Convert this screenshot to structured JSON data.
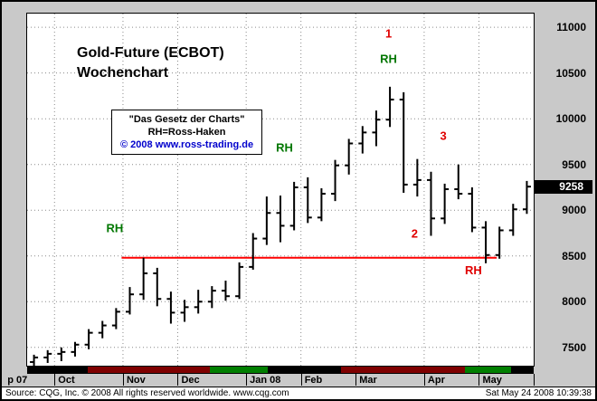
{
  "window": {
    "statusbar": {
      "source": "Source: CQG, Inc. © 2008 All rights reserved worldwide. www.cqg.com",
      "timestamp": "Sat May 24 2008 10:39:38"
    }
  },
  "chart_data": {
    "type": "ohlc-bar",
    "title": "Gold-Future (ECBOT)",
    "subtitle": "Wochenchart",
    "infobox": {
      "line1": "\"Das Gesetz der Charts\"",
      "line2": "RH=Ross-Haken",
      "line3": "© 2008 www.ross-trading.de"
    },
    "ylim": [
      7300,
      11150
    ],
    "yticks": [
      7500,
      8000,
      8500,
      9000,
      9500,
      10000,
      10500,
      11000
    ],
    "last_price": 9258,
    "last_price_label": "9258",
    "grid": "dotted",
    "bar_format": [
      "open",
      "high",
      "low",
      "close"
    ],
    "bars": [
      [
        7340,
        7420,
        7290,
        7390
      ],
      [
        7390,
        7470,
        7330,
        7430
      ],
      [
        7430,
        7500,
        7350,
        7450
      ],
      [
        7450,
        7560,
        7400,
        7530
      ],
      [
        7530,
        7700,
        7480,
        7660
      ],
      [
        7660,
        7790,
        7600,
        7740
      ],
      [
        7740,
        7930,
        7700,
        7890
      ],
      [
        7890,
        8160,
        7860,
        8080
      ],
      [
        8080,
        8480,
        8020,
        8310
      ],
      [
        8310,
        8370,
        7950,
        8030
      ],
      [
        8030,
        8110,
        7760,
        7880
      ],
      [
        7880,
        8020,
        7780,
        7940
      ],
      [
        7940,
        8130,
        7870,
        8000
      ],
      [
        8000,
        8170,
        7930,
        8120
      ],
      [
        8120,
        8230,
        8010,
        8060
      ],
      [
        8060,
        8430,
        8030,
        8380
      ],
      [
        8380,
        8750,
        8350,
        8690
      ],
      [
        8690,
        9150,
        8620,
        8970
      ],
      [
        8970,
        9160,
        8650,
        8830
      ],
      [
        8830,
        9310,
        8780,
        9250
      ],
      [
        9250,
        9360,
        8860,
        8920
      ],
      [
        8920,
        9240,
        8880,
        9180
      ],
      [
        9180,
        9550,
        9100,
        9490
      ],
      [
        9490,
        9780,
        9390,
        9730
      ],
      [
        9730,
        9920,
        9620,
        9850
      ],
      [
        9850,
        10090,
        9700,
        9990
      ],
      [
        9990,
        10350,
        9910,
        10210
      ],
      [
        10210,
        10290,
        9190,
        9280
      ],
      [
        9280,
        9560,
        9150,
        9330
      ],
      [
        9330,
        9420,
        8720,
        8910
      ],
      [
        8910,
        9290,
        8850,
        9230
      ],
      [
        9230,
        9500,
        9120,
        9180
      ],
      [
        9180,
        9250,
        8760,
        8810
      ],
      [
        8810,
        8880,
        8420,
        8510
      ],
      [
        8510,
        8820,
        8470,
        8780
      ],
      [
        8780,
        9070,
        8720,
        9010
      ],
      [
        9010,
        9320,
        8960,
        9258
      ]
    ],
    "month_boundaries": [
      2,
      7,
      11,
      16,
      20,
      24,
      29,
      33
    ],
    "x_labels": [
      {
        "text": "p 07",
        "bar": -1.7
      },
      {
        "text": "Oct",
        "bar": 2
      },
      {
        "text": "Nov",
        "bar": 7
      },
      {
        "text": "Dec",
        "bar": 11
      },
      {
        "text": "Jan 08",
        "bar": 16
      },
      {
        "text": "Feb",
        "bar": 20
      },
      {
        "text": "Mar",
        "bar": 24
      },
      {
        "text": "Apr",
        "bar": 29
      },
      {
        "text": "May",
        "bar": 33
      }
    ],
    "hline": {
      "price": 8480,
      "from_bar": 6.9,
      "to_bar": 34.3,
      "color": "#ff0000",
      "label": "Ross-Hook level"
    },
    "annotations": [
      {
        "text": "RH",
        "bar": 5.9,
        "price": 8760,
        "color": "#007700"
      },
      {
        "text": "RH",
        "bar": 18.3,
        "price": 9640,
        "color": "#007700"
      },
      {
        "text": "1",
        "bar": 25.9,
        "price": 10890,
        "color": "#e00000"
      },
      {
        "text": "RH",
        "bar": 25.9,
        "price": 10610,
        "color": "#007700"
      },
      {
        "text": "2",
        "bar": 27.8,
        "price": 8700,
        "color": "#e00000"
      },
      {
        "text": "3",
        "bar": 29.9,
        "price": 9770,
        "color": "#e00000"
      },
      {
        "text": "RH",
        "bar": 32.1,
        "price": 8300,
        "color": "#e00000"
      }
    ],
    "timebar_segments": [
      {
        "from": 0.0,
        "to": 0.12,
        "color": "#000000"
      },
      {
        "from": 0.12,
        "to": 0.36,
        "color": "#7f0000"
      },
      {
        "from": 0.36,
        "to": 0.475,
        "color": "#007f00"
      },
      {
        "from": 0.475,
        "to": 0.62,
        "color": "#000000"
      },
      {
        "from": 0.62,
        "to": 0.865,
        "color": "#7f0000"
      },
      {
        "from": 0.865,
        "to": 0.955,
        "color": "#007f00"
      },
      {
        "from": 0.955,
        "to": 1.0,
        "color": "#000000"
      }
    ]
  }
}
